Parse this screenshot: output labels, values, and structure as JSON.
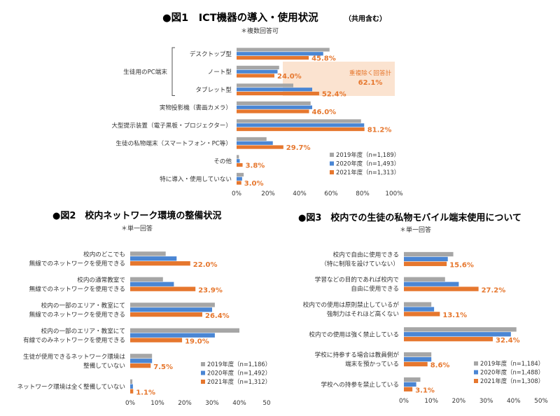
{
  "colors": {
    "y2019": "#a6a6a6",
    "y2020": "#4a86d4",
    "y2021": "#e6772e",
    "highlight_box": "#fbe3d0",
    "value_text": "#e6772e"
  },
  "chart_data": [
    {
      "id": "fig1",
      "type": "bar",
      "orientation": "horizontal",
      "title": "●図1　ICT機器の導入・使用状況",
      "title_suffix": "（共用含む）",
      "subtitle": "＊複数回答可",
      "categories": [
        "デスクトップ型",
        "ノート型",
        "タブレット型",
        "実物投影機（書画カメラ）",
        "大型提示装置（電子黒板・プロジェクター）",
        "生徒の私物端末（スマートフォン・PC等）",
        "その他",
        "特に導入・使用していない"
      ],
      "group_label": "生徒用のPC端末",
      "series": [
        {
          "name": "2019年度（n=1,189）",
          "values": [
            59,
            27,
            36,
            47,
            79,
            19,
            1.5,
            4.5
          ]
        },
        {
          "name": "2020年度（n=1,493）",
          "values": [
            55,
            26,
            48,
            48,
            81,
            23,
            2,
            3.5
          ]
        },
        {
          "name": "2021年度（n=1,313）",
          "values": [
            45.8,
            24.0,
            52.4,
            46.0,
            81.2,
            29.7,
            3.8,
            3.0
          ]
        }
      ],
      "value_labels": [
        "45.8%",
        "24.0%",
        "52.4%",
        "46.0%",
        "81.2%",
        "29.7%",
        "3.8%",
        "3.0%"
      ],
      "highlight": {
        "label": "重複除く回答計",
        "value": "62.1%"
      },
      "xlim": [
        0,
        100
      ],
      "xticks": [
        "0%",
        "20%",
        "40%",
        "60%",
        "80%",
        "100%"
      ],
      "xtick_values": [
        0,
        20,
        40,
        60,
        80,
        100
      ],
      "legend_position": "bottom-right",
      "grid": false
    },
    {
      "id": "fig2",
      "type": "bar",
      "orientation": "horizontal",
      "title": "●図2　校内ネットワーク環境の整備状況",
      "subtitle": "＊単一回答",
      "categories": [
        [
          "校内のどこでも",
          "無線でのネットワークを使用できる"
        ],
        [
          "校内の通常教室で",
          "無線でのネットワークを使用できる"
        ],
        [
          "校内の一部のエリア・教室にて",
          "無線でのネットワークを使用できる"
        ],
        [
          "校内の一部のエリア・教室にて",
          "有線でのみネットワークを使用できる"
        ],
        [
          "生徒が使用できるネットワーク環境は",
          "整備していない"
        ],
        [
          "ネットワーク環境は全く整備していない"
        ]
      ],
      "series": [
        {
          "name": "2019年度（n=1,186）",
          "values": [
            13,
            12,
            31,
            40,
            8,
            0.8
          ]
        },
        {
          "name": "2020年度（n=1,492）",
          "values": [
            17,
            16,
            30,
            31,
            8,
            1
          ]
        },
        {
          "name": "2021年度（n=1,312）",
          "values": [
            22.0,
            23.9,
            26.4,
            19.0,
            7.5,
            1.1
          ]
        }
      ],
      "value_labels": [
        "22.0%",
        "23.9%",
        "26.4%",
        "19.0%",
        "7.5%",
        "1.1%"
      ],
      "xlim": [
        0,
        50
      ],
      "xticks": [
        "0%",
        "10%",
        "20%",
        "30%",
        "40%",
        "50"
      ],
      "xtick_values": [
        0,
        10,
        20,
        30,
        40,
        50
      ],
      "legend_position": "bottom-right",
      "grid": false
    },
    {
      "id": "fig3",
      "type": "bar",
      "orientation": "horizontal",
      "title": "●図3　校内での生徒の私物モバイル端末使用について",
      "subtitle": "＊単一回答",
      "categories": [
        [
          "校内で自由に使用できる",
          "（特に制限を設けていない）"
        ],
        [
          "学習などの目的であれば校内で",
          "自由に使用できる"
        ],
        [
          "校内での使用は原則禁止しているが",
          "強制力はそれほど高くない"
        ],
        [
          "校内での使用は強く禁止している"
        ],
        [
          "学校に持参する場合は教員側が",
          "端末を預かっている"
        ],
        [
          "学校への持参を禁止している"
        ]
      ],
      "series": [
        {
          "name": "2019年度（n=1,184）",
          "values": [
            18,
            15,
            10,
            41,
            10,
            6
          ]
        },
        {
          "name": "2020年度（n=1,488）",
          "values": [
            16,
            20,
            11,
            39,
            10,
            4.5
          ]
        },
        {
          "name": "2021年度（n=1,308）",
          "values": [
            15.6,
            27.2,
            13.1,
            32.4,
            8.6,
            3.1
          ]
        }
      ],
      "value_labels": [
        "15.6%",
        "27.2%",
        "13.1%",
        "32.4%",
        "8.6%",
        "3.1%"
      ],
      "xlim": [
        0,
        50
      ],
      "xticks": [
        "0%",
        "10%",
        "20%",
        "30%",
        "40%",
        "50%"
      ],
      "xtick_values": [
        0,
        10,
        20,
        30,
        40,
        50
      ],
      "legend_position": "bottom-right",
      "grid": false
    }
  ]
}
